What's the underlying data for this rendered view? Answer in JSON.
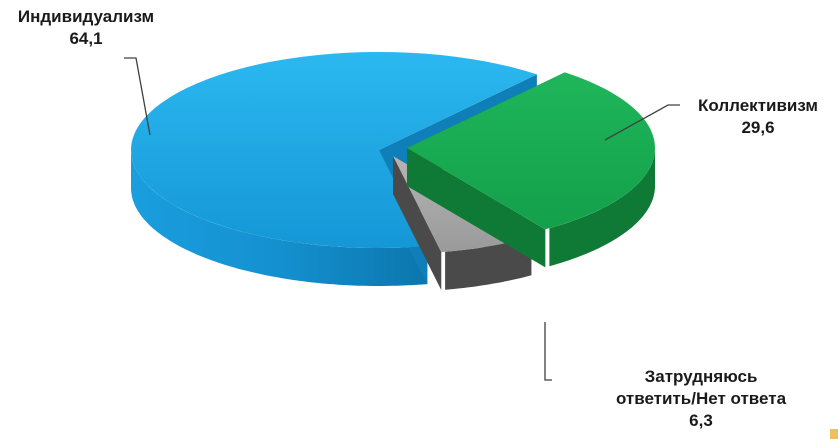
{
  "chart_data": {
    "type": "pie",
    "title": "",
    "categories": [
      "Индивидуализм",
      "Коллективизм",
      "Затрудняюсь ответить/Нет ответа"
    ],
    "values": [
      64.1,
      29.6,
      6.3
    ],
    "value_labels": [
      "64,1",
      "29,6",
      "6,3"
    ],
    "label_lines": [
      [
        "Индивидуализм",
        "64,1"
      ],
      [
        "Коллективизм",
        "29,6"
      ],
      [
        "Затрудняюсь",
        "ответить/Нет ответа",
        "6,3"
      ]
    ],
    "colors": [
      "#1ea7e6",
      "#1aa852",
      "#a6a6a6"
    ],
    "side_colors": [
      "#0e7fb8",
      "#0f7a36",
      "#4a4a4a"
    ],
    "legend": "none",
    "style": "3d exploded pie, data labels with leader lines"
  }
}
